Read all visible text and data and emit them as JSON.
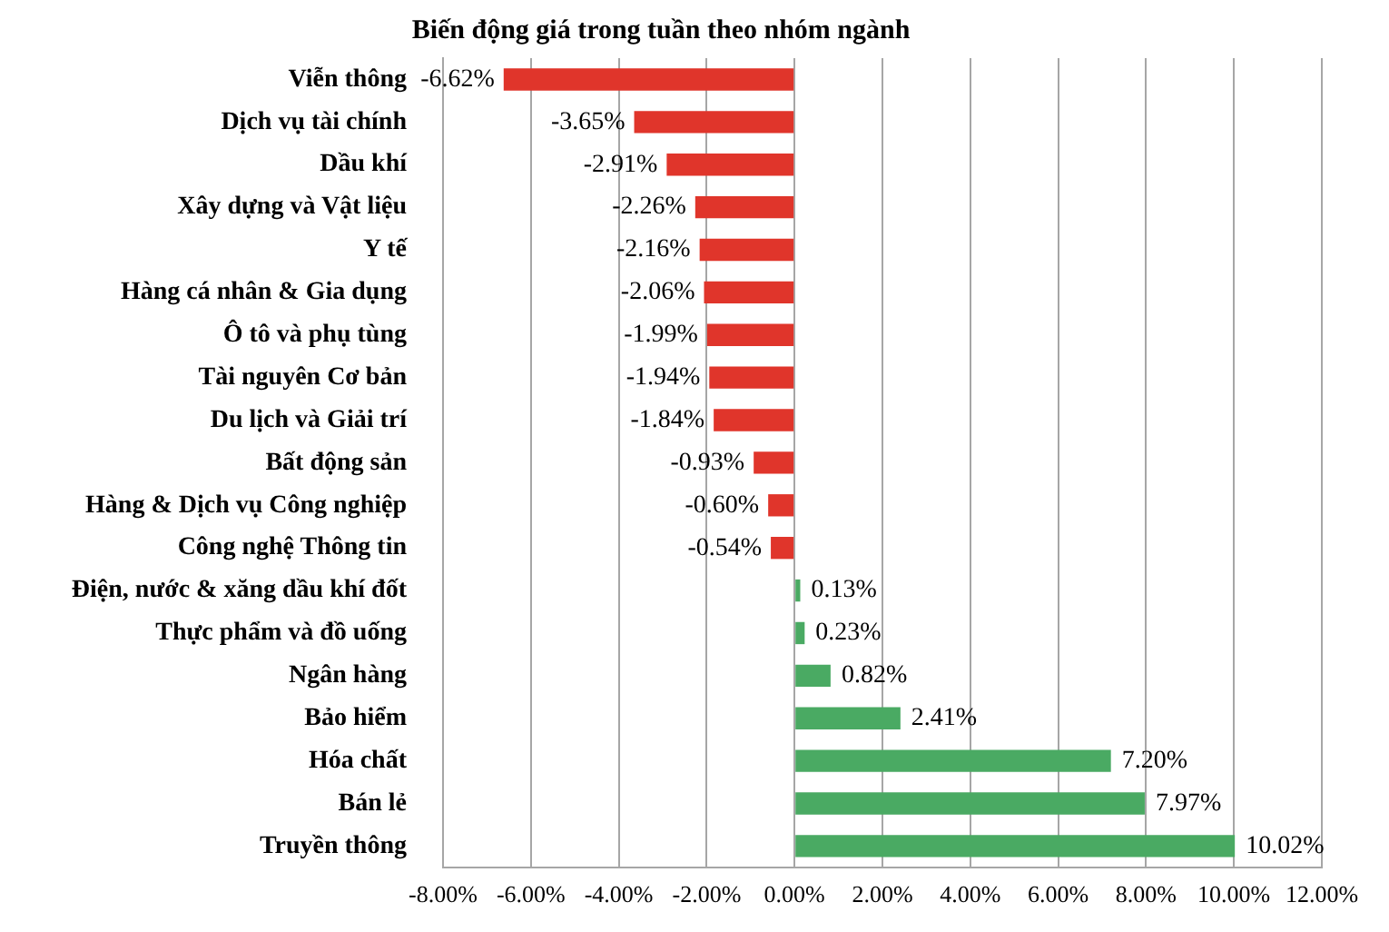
{
  "chart_data": {
    "type": "bar",
    "orientation": "horizontal",
    "title": "Biến động giá trong tuần theo nhóm ngành",
    "categories": [
      "Viễn thông",
      "Dịch vụ tài chính",
      "Dầu khí",
      "Xây dựng và Vật liệu",
      "Y tế",
      "Hàng cá nhân & Gia dụng",
      "Ô tô và phụ tùng",
      "Tài nguyên Cơ bản",
      "Du lịch và Giải trí",
      "Bất động sản",
      "Hàng & Dịch vụ Công nghiệp",
      "Công nghệ Thông tin",
      "Điện, nước & xăng dầu khí đốt",
      "Thực phẩm và đồ uống",
      "Ngân hàng",
      "Bảo hiểm",
      "Hóa chất",
      "Bán lẻ",
      "Truyền thông"
    ],
    "values": [
      -6.62,
      -3.65,
      -2.91,
      -2.26,
      -2.16,
      -2.06,
      -1.99,
      -1.94,
      -1.84,
      -0.93,
      -0.6,
      -0.54,
      0.13,
      0.23,
      0.82,
      2.41,
      7.2,
      7.97,
      10.02
    ],
    "value_labels": [
      "-6.62%",
      "-3.65%",
      "-2.91%",
      "-2.26%",
      "-2.16%",
      "-2.06%",
      "-1.99%",
      "-1.94%",
      "-1.84%",
      "-0.93%",
      "-0.60%",
      "-0.54%",
      "0.13%",
      "0.23%",
      "0.82%",
      "2.41%",
      "7.20%",
      "7.97%",
      "10.02%"
    ],
    "colors": [
      "#e0352b",
      "#e0352b",
      "#e0352b",
      "#e0352b",
      "#e0352b",
      "#e0352b",
      "#e0352b",
      "#e0352b",
      "#e0352b",
      "#e0352b",
      "#e0352b",
      "#e0352b",
      "#4aaa63",
      "#4aaa63",
      "#4aaa63",
      "#4aaa63",
      "#4aaa63",
      "#4aaa63",
      "#4aaa63"
    ],
    "xlim": [
      -8,
      12
    ],
    "xticks": [
      {
        "value": -8,
        "label": "-8.00%"
      },
      {
        "value": -6,
        "label": "-6.00%"
      },
      {
        "value": -4,
        "label": "-4.00%"
      },
      {
        "value": -2,
        "label": "-2.00%"
      },
      {
        "value": 0,
        "label": "0.00%"
      },
      {
        "value": 2,
        "label": "2.00%"
      },
      {
        "value": 4,
        "label": "4.00%"
      },
      {
        "value": 6,
        "label": "6.00%"
      },
      {
        "value": 8,
        "label": "8.00%"
      },
      {
        "value": 10,
        "label": "10.00%"
      },
      {
        "value": 12,
        "label": "12.00%"
      }
    ],
    "grid": "x"
  }
}
